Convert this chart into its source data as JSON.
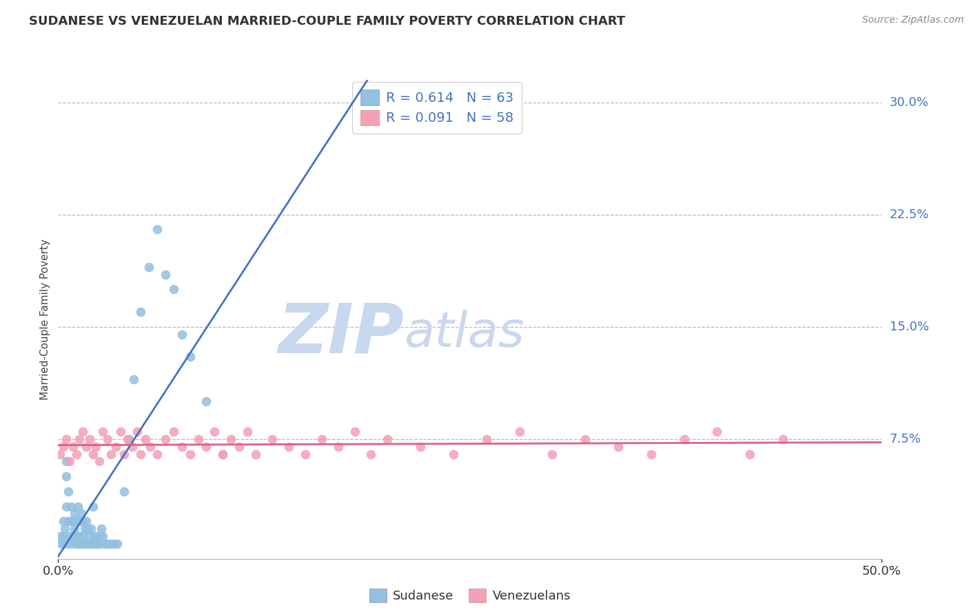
{
  "title": "SUDANESE VS VENEZUELAN MARRIED-COUPLE FAMILY POVERTY CORRELATION CHART",
  "source": "Source: ZipAtlas.com",
  "ylabel": "Married-Couple Family Poverty",
  "legend_label1": "Sudanese",
  "legend_label2": "Venezuelans",
  "R1": 0.614,
  "N1": 63,
  "R2": 0.091,
  "N2": 58,
  "xlim": [
    0.0,
    0.5
  ],
  "ylim": [
    -0.005,
    0.315
  ],
  "yticks": [
    0.075,
    0.15,
    0.225,
    0.3
  ],
  "ytick_labels": [
    "7.5%",
    "15.0%",
    "22.5%",
    "30.0%"
  ],
  "color_sudanese": "#92C0E0",
  "color_venezuelan": "#F4A0B5",
  "line_color_sudanese": "#4472C4",
  "line_color_venezuelan": "#E06080",
  "background_color": "#FFFFFF",
  "watermark_zip": "ZIP",
  "watermark_atlas": "atlas",
  "watermark_color_zip": "#C8D8EE",
  "watermark_color_atlas": "#C8D8EE",
  "sudanese_x": [
    0.001,
    0.002,
    0.003,
    0.003,
    0.004,
    0.004,
    0.005,
    0.005,
    0.005,
    0.006,
    0.006,
    0.007,
    0.007,
    0.008,
    0.008,
    0.009,
    0.009,
    0.01,
    0.01,
    0.01,
    0.011,
    0.011,
    0.012,
    0.012,
    0.013,
    0.013,
    0.014,
    0.014,
    0.015,
    0.015,
    0.016,
    0.016,
    0.017,
    0.018,
    0.018,
    0.019,
    0.02,
    0.02,
    0.021,
    0.022,
    0.022,
    0.023,
    0.024,
    0.025,
    0.026,
    0.027,
    0.028,
    0.03,
    0.032,
    0.034,
    0.036,
    0.04,
    0.043,
    0.046,
    0.05,
    0.055,
    0.06,
    0.065,
    0.07,
    0.075,
    0.08,
    0.09,
    0.1
  ],
  "sudanese_y": [
    0.01,
    0.005,
    0.01,
    0.02,
    0.005,
    0.015,
    0.03,
    0.05,
    0.06,
    0.02,
    0.04,
    0.005,
    0.01,
    0.02,
    0.03,
    0.01,
    0.02,
    0.005,
    0.015,
    0.025,
    0.01,
    0.02,
    0.005,
    0.03,
    0.01,
    0.02,
    0.005,
    0.025,
    0.01,
    0.02,
    0.005,
    0.015,
    0.02,
    0.005,
    0.015,
    0.01,
    0.005,
    0.015,
    0.03,
    0.005,
    0.01,
    0.005,
    0.01,
    0.005,
    0.015,
    0.01,
    0.005,
    0.005,
    0.005,
    0.005,
    0.005,
    0.04,
    0.075,
    0.115,
    0.16,
    0.19,
    0.215,
    0.185,
    0.175,
    0.145,
    0.13,
    0.1,
    0.065
  ],
  "venezuelan_x": [
    0.001,
    0.003,
    0.005,
    0.007,
    0.009,
    0.011,
    0.013,
    0.015,
    0.017,
    0.019,
    0.021,
    0.023,
    0.025,
    0.027,
    0.03,
    0.032,
    0.035,
    0.038,
    0.04,
    0.042,
    0.045,
    0.048,
    0.05,
    0.053,
    0.056,
    0.06,
    0.065,
    0.07,
    0.075,
    0.08,
    0.085,
    0.09,
    0.095,
    0.1,
    0.105,
    0.11,
    0.115,
    0.12,
    0.13,
    0.14,
    0.15,
    0.16,
    0.17,
    0.18,
    0.19,
    0.2,
    0.22,
    0.24,
    0.26,
    0.28,
    0.3,
    0.32,
    0.34,
    0.36,
    0.38,
    0.4,
    0.42,
    0.44
  ],
  "venezuelan_y": [
    0.065,
    0.07,
    0.075,
    0.06,
    0.07,
    0.065,
    0.075,
    0.08,
    0.07,
    0.075,
    0.065,
    0.07,
    0.06,
    0.08,
    0.075,
    0.065,
    0.07,
    0.08,
    0.065,
    0.075,
    0.07,
    0.08,
    0.065,
    0.075,
    0.07,
    0.065,
    0.075,
    0.08,
    0.07,
    0.065,
    0.075,
    0.07,
    0.08,
    0.065,
    0.075,
    0.07,
    0.08,
    0.065,
    0.075,
    0.07,
    0.065,
    0.075,
    0.07,
    0.08,
    0.065,
    0.075,
    0.07,
    0.065,
    0.075,
    0.08,
    0.065,
    0.075,
    0.07,
    0.065,
    0.075,
    0.08,
    0.065,
    0.075
  ]
}
